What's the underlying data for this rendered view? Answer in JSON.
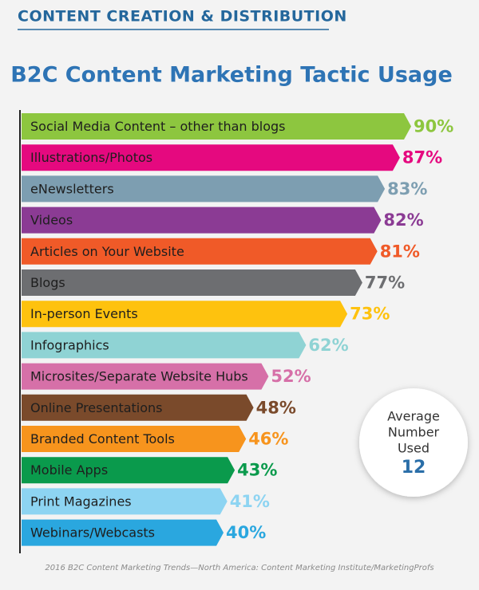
{
  "chart_data": {
    "type": "bar",
    "header": "CONTENT CREATION & DISTRIBUTION",
    "title": "B2C Content Marketing Tactic Usage",
    "categories": [
      "Social Media Content – other than blogs",
      "Illustrations/Photos",
      "eNewsletters",
      "Videos",
      "Articles on Your Website",
      "Blogs",
      "In-person Events",
      "Infographics",
      "Microsites/Separate Website Hubs",
      "Online Presentations",
      "Branded Content Tools",
      "Mobile Apps",
      "Print Magazines",
      "Webinars/Webcasts"
    ],
    "values": [
      90,
      87,
      83,
      82,
      81,
      77,
      73,
      62,
      52,
      48,
      46,
      43,
      41,
      40
    ],
    "value_labels": [
      "90%",
      "87%",
      "83%",
      "82%",
      "81%",
      "77%",
      "73%",
      "62%",
      "52%",
      "48%",
      "46%",
      "43%",
      "41%",
      "40%"
    ],
    "colors": [
      "#8dc63f",
      "#e5097f",
      "#7d9eb1",
      "#8b3b94",
      "#f05a28",
      "#6d6e71",
      "#fec20e",
      "#8fd3d4",
      "#d670a8",
      "#7a4a2b",
      "#f7941d",
      "#0a9a4c",
      "#8dd4f2",
      "#2aa7df"
    ],
    "annotation": {
      "lines": [
        "Average",
        "Number",
        "Used"
      ],
      "value": 12
    },
    "source": "2016 B2C Content Marketing Trends—North America: Content Marketing Institute/MarketingProfs"
  }
}
